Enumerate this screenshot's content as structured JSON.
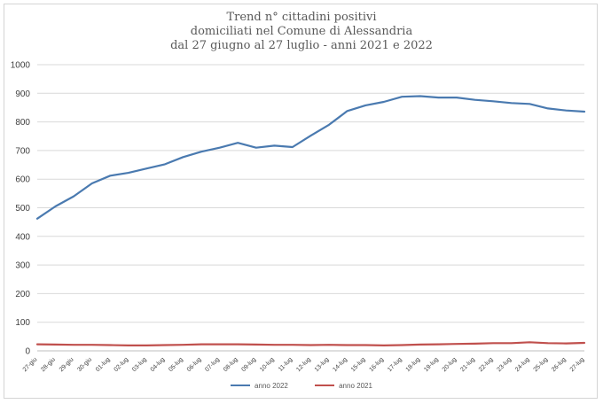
{
  "chart_data": {
    "type": "line",
    "title_lines": [
      "Trend n° cittadini positivi",
      "domiciliati nel Comune di Alessandria",
      "dal 27 giugno al 27 luglio - anni 2021 e 2022"
    ],
    "xlabel": "",
    "ylabel": "",
    "ylim": [
      0,
      1000
    ],
    "yticks": [
      0,
      100,
      200,
      300,
      400,
      500,
      600,
      700,
      800,
      900,
      1000
    ],
    "grid": true,
    "legend_position": "bottom",
    "categories": [
      "27-giu",
      "28-giu",
      "29-giu",
      "30-giu",
      "01-lug",
      "02-lug",
      "03-lug",
      "04-lug",
      "05-lug",
      "06-lug",
      "07-lug",
      "08-lug",
      "09-lug",
      "10-lug",
      "11-lug",
      "12-lug",
      "13-lug",
      "14-lug",
      "15-lug",
      "16-lug",
      "17-lug",
      "18-lug",
      "19-lug",
      "20-lug",
      "21-lug",
      "22-lug",
      "23-lug",
      "24-lug",
      "25-lug",
      "26-lug",
      "27-lug"
    ],
    "series": [
      {
        "name": "anno 2022",
        "color": "#4a7ab0",
        "values": [
          462,
          505,
          540,
          585,
          612,
          622,
          637,
          652,
          677,
          696,
          710,
          727,
          710,
          717,
          712,
          752,
          790,
          838,
          858,
          870,
          888,
          890,
          885,
          885,
          877,
          872,
          866,
          863,
          847,
          840,
          836
        ]
      },
      {
        "name": "anno 2021",
        "color": "#c0504d",
        "values": [
          23,
          22,
          21,
          21,
          20,
          19,
          19,
          20,
          21,
          23,
          23,
          23,
          22,
          21,
          21,
          20,
          21,
          20,
          20,
          19,
          20,
          22,
          23,
          24,
          25,
          27,
          27,
          30,
          27,
          26,
          28
        ]
      }
    ]
  }
}
